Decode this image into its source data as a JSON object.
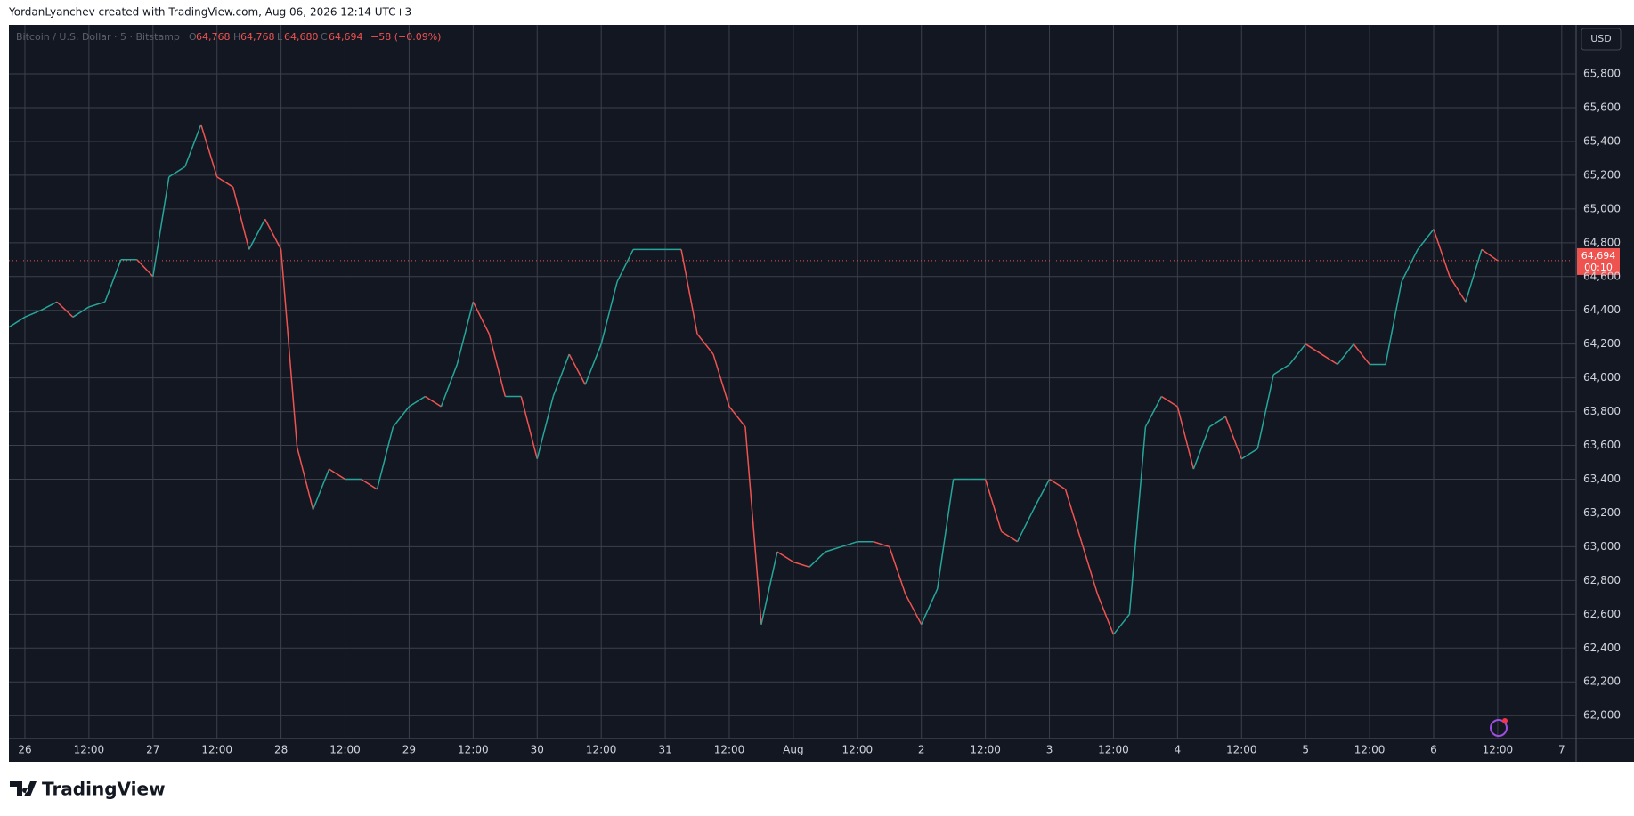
{
  "header": {
    "text": "YordanLyanchev created with TradingView.com, Aug 06, 2026 12:14 UTC+3"
  },
  "legend": {
    "symbol": "Bitcoin / U.S. Dollar · 5 · Bitstamp",
    "o_key": "O",
    "o": "64,768",
    "h_key": "H",
    "h": "64,768",
    "l_key": "L",
    "l": "64,680",
    "c_key": "C",
    "c": "64,694",
    "change": "−58 (−0.09%)"
  },
  "price_scale": {
    "currency": "USD",
    "last_price_label": "64,694",
    "countdown": "00:10"
  },
  "branding": "TradingView",
  "chart_data": {
    "type": "line",
    "x": [
      -3,
      0,
      3,
      6,
      9,
      12,
      15,
      18,
      21,
      24,
      27,
      30,
      33,
      36,
      39,
      42,
      45,
      48,
      51,
      54,
      57,
      60,
      63,
      66,
      69,
      72,
      75,
      78,
      81,
      84,
      87,
      90,
      93,
      96,
      99,
      102,
      105,
      108,
      111,
      114,
      117,
      120,
      123,
      126,
      129,
      132,
      135,
      138,
      141,
      144,
      147,
      150,
      153,
      156,
      159,
      162,
      165,
      168,
      171,
      174,
      177,
      180,
      183,
      186,
      189,
      192,
      195,
      198,
      201,
      204,
      207,
      210,
      213,
      216,
      219,
      222,
      225,
      228,
      231,
      234,
      237,
      240,
      243,
      246,
      249,
      252,
      255,
      258,
      261,
      264,
      267,
      270,
      273,
      276
    ],
    "series": [
      {
        "name": "Bitcoin / U.S. Dollar",
        "up_color": "#26a69a",
        "down_color": "#ef5350",
        "values": [
          64300,
          64360,
          64400,
          64450,
          64360,
          64420,
          64450,
          64700,
          64700,
          64600,
          65190,
          65250,
          65500,
          65190,
          65130,
          64760,
          64940,
          64760,
          63590,
          63220,
          63460,
          63400,
          63400,
          63340,
          63710,
          63830,
          63890,
          63830,
          64080,
          64450,
          64260,
          63890,
          63890,
          63520,
          63890,
          64140,
          63960,
          64200,
          64570,
          64760,
          64760,
          64760,
          64760,
          64260,
          64140,
          63830,
          63710,
          62540,
          62970,
          62910,
          62880,
          62970,
          63000,
          63030,
          63030,
          63000,
          62720,
          62540,
          62750,
          63400,
          63400,
          63400,
          63090,
          63030,
          63220,
          63400,
          63340,
          63030,
          62720,
          62480,
          62600,
          63710,
          63890,
          63830,
          63460,
          63710,
          63770,
          63520,
          63580,
          64020,
          64080,
          64200,
          64140,
          64080,
          64200,
          64080,
          64080,
          64570,
          64760,
          64880,
          64600,
          64450,
          64760,
          64694
        ]
      }
    ],
    "xlim": [
      -3,
      290.7
    ],
    "xticks": [
      {
        "value": 0,
        "label": "26"
      },
      {
        "value": 12,
        "label": "12:00"
      },
      {
        "value": 24,
        "label": "27"
      },
      {
        "value": 36,
        "label": "12:00"
      },
      {
        "value": 48,
        "label": "28"
      },
      {
        "value": 60,
        "label": "12:00"
      },
      {
        "value": 72,
        "label": "29"
      },
      {
        "value": 84,
        "label": "12:00"
      },
      {
        "value": 96,
        "label": "30"
      },
      {
        "value": 108,
        "label": "12:00"
      },
      {
        "value": 120,
        "label": "31"
      },
      {
        "value": 132,
        "label": "12:00"
      },
      {
        "value": 144,
        "label": "Aug"
      },
      {
        "value": 156,
        "label": "12:00"
      },
      {
        "value": 168,
        "label": "2"
      },
      {
        "value": 180,
        "label": "12:00"
      },
      {
        "value": 192,
        "label": "3"
      },
      {
        "value": 204,
        "label": "12:00"
      },
      {
        "value": 216,
        "label": "4"
      },
      {
        "value": 228,
        "label": "12:00"
      },
      {
        "value": 240,
        "label": "5"
      },
      {
        "value": 252,
        "label": "12:00"
      },
      {
        "value": 264,
        "label": "6"
      },
      {
        "value": 276,
        "label": "12:00"
      },
      {
        "value": 288,
        "label": "7"
      }
    ],
    "ylim": [
      61864,
      66090
    ],
    "yticks": [
      {
        "value": 62000,
        "label": "62,000"
      },
      {
        "value": 62200,
        "label": "62,200"
      },
      {
        "value": 62400,
        "label": "62,400"
      },
      {
        "value": 62600,
        "label": "62,600"
      },
      {
        "value": 62800,
        "label": "62,800"
      },
      {
        "value": 63000,
        "label": "63,000"
      },
      {
        "value": 63200,
        "label": "63,200"
      },
      {
        "value": 63400,
        "label": "63,400"
      },
      {
        "value": 63600,
        "label": "63,600"
      },
      {
        "value": 63800,
        "label": "63,800"
      },
      {
        "value": 64000,
        "label": "64,000"
      },
      {
        "value": 64200,
        "label": "64,200"
      },
      {
        "value": 64400,
        "label": "64,400"
      },
      {
        "value": 64600,
        "label": "64,600"
      },
      {
        "value": 64800,
        "label": "64,800"
      },
      {
        "value": 65000,
        "label": "65,000"
      },
      {
        "value": 65200,
        "label": "65,200"
      },
      {
        "value": 65400,
        "label": "65,400"
      },
      {
        "value": 65600,
        "label": "65,600"
      },
      {
        "value": 65800,
        "label": "65,800"
      }
    ],
    "grid": true
  }
}
